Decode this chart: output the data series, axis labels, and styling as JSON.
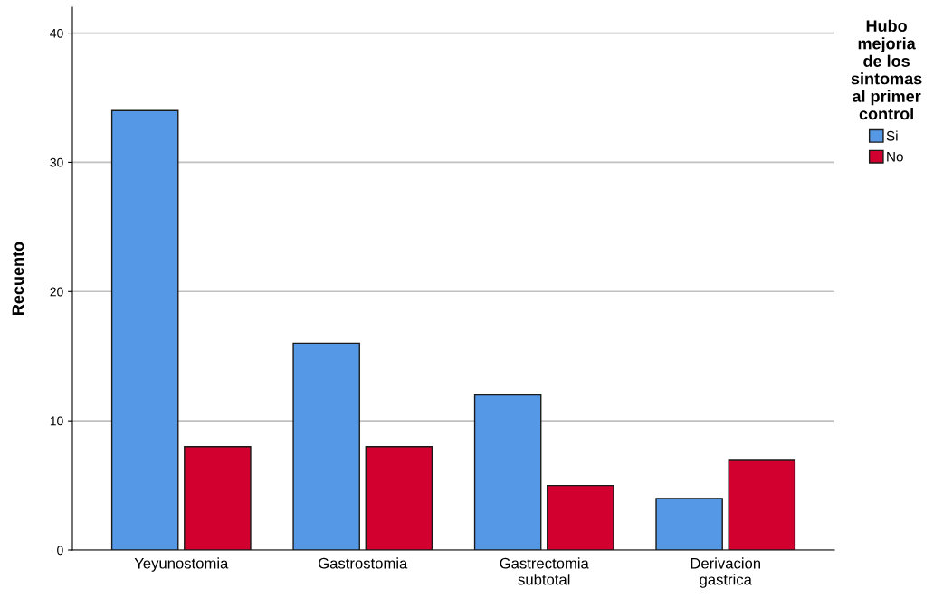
{
  "chart_data": {
    "type": "bar",
    "ylabel": "Recuento",
    "legend_title": "Hubo\nmejoria\nde los\nsintomas\nal primer\ncontrol",
    "categories": [
      "Yeyunostomia",
      "Gastrostomia",
      "Gastrectomia\nsubtotal",
      "Derivacion\ngastrica"
    ],
    "series": [
      {
        "name": "Si",
        "color": "#5599e6",
        "values": [
          34,
          16,
          12,
          4
        ]
      },
      {
        "name": "No",
        "color": "#d2002e",
        "values": [
          8,
          8,
          5,
          7
        ]
      }
    ],
    "ylim": [
      0,
      42
    ],
    "yticks": [
      0,
      10,
      20,
      30,
      40
    ],
    "grid": "y",
    "legend": "right"
  }
}
